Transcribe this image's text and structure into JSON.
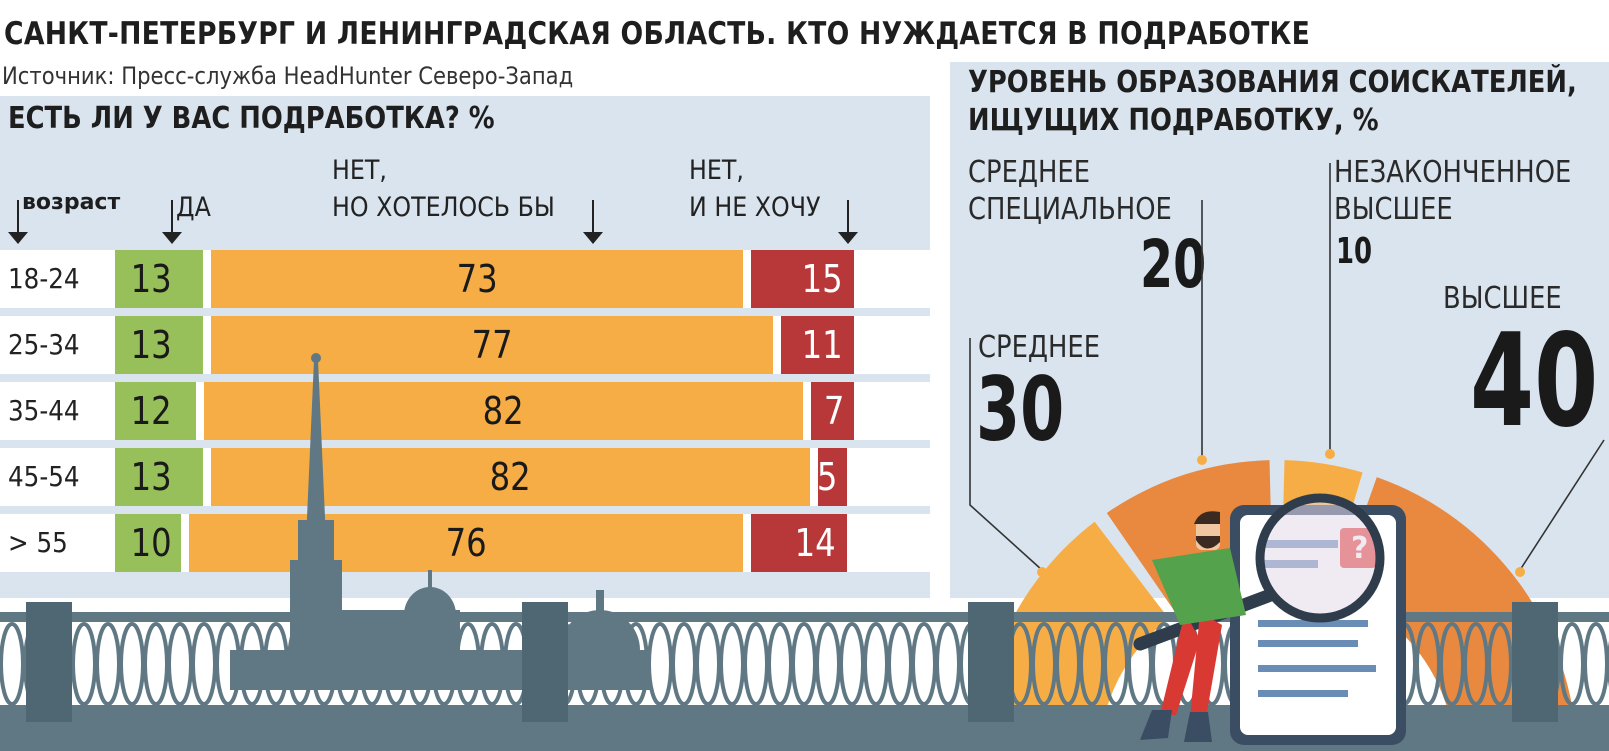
{
  "title": "САНКТ-ПЕТЕРБУРГ И ЛЕНИНГРАДСКАЯ ОБЛАСТЬ. КТО НУЖДАЕТСЯ В ПОДРАБОТКЕ",
  "source": "Источник: Пресс-служба HeadHunter Северо-Запад",
  "colors": {
    "yes": "#98c05a",
    "want": "#f7ad45",
    "no": "#b8383a",
    "panel": "#d9e4ef",
    "railing": "#5f7883"
  },
  "chart_data": [
    {
      "type": "bar",
      "stacked": true,
      "orientation": "horizontal",
      "title": "ЕСТЬ ЛИ У ВАС ПОДРАБОТКА? %",
      "category_header": "возраст",
      "categories": [
        "18-24",
        "25-34",
        "35-44",
        "45-54",
        "> 55"
      ],
      "series": [
        {
          "name": "ДА",
          "values": [
            13,
            13,
            12,
            13,
            10
          ]
        },
        {
          "name_line1": "НЕТ,",
          "name_line2": "НО ХОТЕЛОСЬ БЫ",
          "values": [
            73,
            77,
            82,
            82,
            76
          ]
        },
        {
          "name_line1": "НЕТ,",
          "name_line2": "И НЕ ХОЧУ",
          "values": [
            15,
            11,
            7,
            5,
            14
          ]
        }
      ]
    },
    {
      "type": "pie",
      "style": "half-donut",
      "title_line1": "УРОВЕНЬ ОБРАЗОВАНИЯ СОИСКАТЕЛЕЙ,",
      "title_line2": "ИЩУЩИХ ПОДРАБОТКУ, %",
      "slices": [
        {
          "label": "СРЕДНЕЕ",
          "value": 30
        },
        {
          "label_line1": "СРЕДНЕЕ",
          "label_line2": "СПЕЦИАЛЬНОЕ",
          "value": 20
        },
        {
          "label_line1": "НЕЗАКОНЧЕННОЕ",
          "label_line2": "ВЫСШЕЕ",
          "value": 10
        },
        {
          "label": "ВЫСШЕЕ",
          "value": 40
        }
      ]
    }
  ]
}
